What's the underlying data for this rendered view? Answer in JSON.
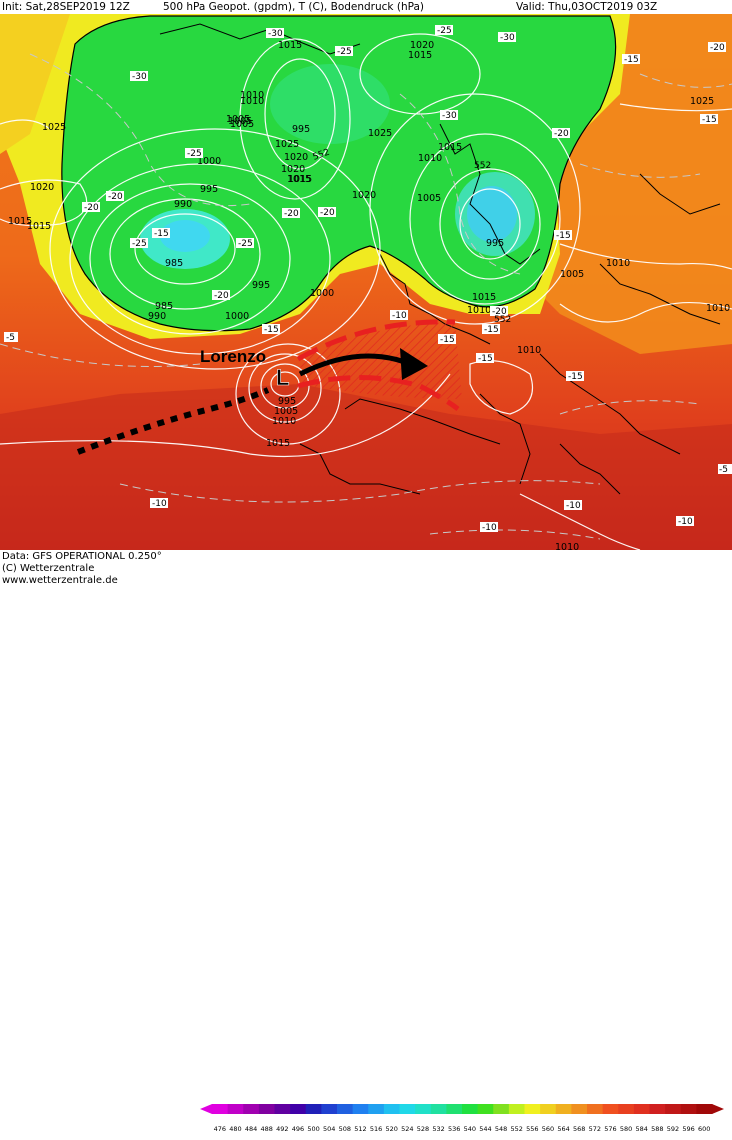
{
  "header": {
    "init": "Init: Sat,28SEP2019 12Z",
    "product": "500 hPa Geopot. (gpdm), T (C), Bodendruck (hPa)",
    "valid": "Valid: Thu,03OCT2019 03Z"
  },
  "annotation": {
    "storm_name": "Lorenzo",
    "low_symbol": "L"
  },
  "pressure_labels": [
    "1015",
    "1020",
    "1010",
    "1005",
    "1025",
    "1020",
    "1015",
    "1000",
    "995",
    "990",
    "985",
    "985",
    "990",
    "995",
    "1000",
    "995",
    "1005",
    "1010",
    "1015",
    "1020",
    "1025",
    "1015",
    "1010",
    "1005",
    "995",
    "1015",
    "1020",
    "1010",
    "1015",
    "1010",
    "1005",
    "1010",
    "1025",
    "1010",
    "995",
    "1005",
    "1010",
    "1015",
    "1010",
    "1015",
    "1000",
    "1005",
    "1025",
    "1020",
    "1015"
  ],
  "temperature_labels": [
    "-30",
    "-25",
    "-30",
    "-25",
    "-30",
    "-25",
    "-25",
    "-20",
    "-20",
    "-20",
    "-15",
    "-20",
    "-25",
    "-30",
    "-20",
    "-15",
    "-15",
    "-20",
    "-15",
    "-15",
    "-20",
    "-15",
    "-10",
    "-10",
    "-10",
    "-10",
    "-15",
    "-5",
    "-5",
    "-10",
    "-20",
    "-15",
    "-15"
  ],
  "contour_labels": [
    "552",
    "552",
    "552"
  ],
  "footer": {
    "data": "Data: GFS OPERATIONAL  0.250°",
    "copyright": "(C) Wetterzentrale",
    "url": "www.wetterzentrale.de"
  },
  "colorbar": {
    "ticks": [
      "476",
      "480",
      "484",
      "488",
      "492",
      "496",
      "500",
      "504",
      "508",
      "512",
      "516",
      "520",
      "524",
      "528",
      "532",
      "536",
      "540",
      "544",
      "548",
      "552",
      "556",
      "560",
      "564",
      "568",
      "572",
      "576",
      "580",
      "584",
      "588",
      "592",
      "596",
      "600"
    ],
    "colors": [
      "#e000e0",
      "#c000c8",
      "#a000b0",
      "#8000a0",
      "#6000a0",
      "#4000a8",
      "#2020b8",
      "#2040d0",
      "#2060e0",
      "#2080f0",
      "#20a0f0",
      "#20c0f0",
      "#20d8e8",
      "#20e0c8",
      "#20e0a0",
      "#20e070",
      "#20e040",
      "#40e020",
      "#80e020",
      "#c0f020",
      "#f0f020",
      "#f0d020",
      "#f0b020",
      "#f09020",
      "#f07020",
      "#f05020",
      "#e84020",
      "#e03020",
      "#d02020",
      "#c01818",
      "#b01010",
      "#a00808"
    ]
  }
}
